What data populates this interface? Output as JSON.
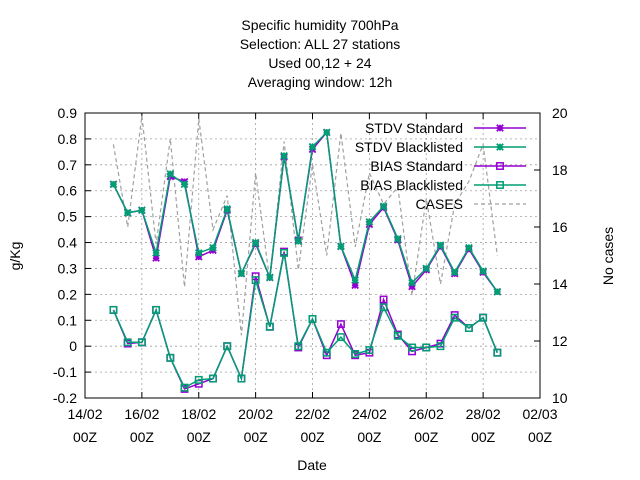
{
  "chart_data": {
    "type": "line",
    "title_lines": [
      "Specific humidity 700hPa",
      "Selection: ALL      27 stations",
      "Used  00,12  + 24",
      "Averaging window: 12h"
    ],
    "xlabel": "Date",
    "ylabel": "g/Kg",
    "y2label": "No cases",
    "ylim": [
      -0.2,
      0.9
    ],
    "y2lim": [
      10,
      20
    ],
    "y_ticks": [
      -0.2,
      -0.1,
      0,
      0.1,
      0.2,
      0.3,
      0.4,
      0.5,
      0.6,
      0.7,
      0.8,
      0.9
    ],
    "y2_ticks": [
      10,
      12,
      14,
      16,
      18,
      20
    ],
    "x_range_days": [
      0,
      16
    ],
    "x_ticks": [
      {
        "day": 0,
        "line1": "14/02",
        "line2": "00Z"
      },
      {
        "day": 2,
        "line1": "16/02",
        "line2": "00Z"
      },
      {
        "day": 4,
        "line1": "18/02",
        "line2": "00Z"
      },
      {
        "day": 6,
        "line1": "20/02",
        "line2": "00Z"
      },
      {
        "day": 8,
        "line1": "22/02",
        "line2": "00Z"
      },
      {
        "day": 10,
        "line1": "24/02",
        "line2": "00Z"
      },
      {
        "day": 12,
        "line1": "26/02",
        "line2": "00Z"
      },
      {
        "day": 14,
        "line1": "28/02",
        "line2": "00Z"
      },
      {
        "day": 16,
        "line1": "02/03",
        "line2": "00Z"
      }
    ],
    "grid": true,
    "legend_position": "top-right",
    "x_days": [
      1.0,
      1.5,
      2.0,
      2.5,
      3.0,
      3.5,
      4.0,
      4.5,
      5.0,
      5.5,
      6.0,
      6.5,
      7.0,
      7.5,
      8.0,
      8.5,
      9.0,
      9.5,
      10.0,
      10.5,
      11.0,
      11.5,
      12.0,
      12.5,
      13.0,
      13.5,
      14.0,
      14.5
    ],
    "series": [
      {
        "name": "STDV Standard",
        "axis": "y",
        "color": "#9400d3",
        "marker": "star",
        "dash": false,
        "values": [
          0.625,
          0.515,
          0.525,
          0.34,
          0.655,
          0.635,
          0.345,
          0.37,
          0.525,
          0.28,
          0.395,
          0.265,
          0.73,
          0.41,
          0.76,
          0.825,
          0.385,
          0.235,
          0.47,
          0.535,
          0.41,
          0.23,
          0.295,
          0.385,
          0.28,
          0.375,
          0.285,
          0.21
        ]
      },
      {
        "name": "STDV Blacklisted",
        "axis": "y",
        "color": "#009e73",
        "marker": "cross",
        "dash": false,
        "values": [
          0.625,
          0.515,
          0.525,
          0.36,
          0.665,
          0.625,
          0.36,
          0.38,
          0.53,
          0.28,
          0.4,
          0.265,
          0.735,
          0.405,
          0.77,
          0.825,
          0.385,
          0.255,
          0.48,
          0.54,
          0.415,
          0.245,
          0.3,
          0.39,
          0.285,
          0.38,
          0.29,
          0.21
        ]
      },
      {
        "name": "BIAS Standard",
        "axis": "y",
        "color": "#9400d3",
        "marker": "square",
        "dash": false,
        "values": [
          0.14,
          0.01,
          0.015,
          0.14,
          -0.045,
          -0.165,
          -0.145,
          -0.125,
          0.0,
          -0.125,
          0.27,
          0.075,
          0.365,
          -0.005,
          0.105,
          -0.035,
          0.085,
          -0.035,
          -0.025,
          0.18,
          0.045,
          -0.02,
          -0.005,
          0.01,
          0.12,
          0.07,
          0.11,
          -0.025
        ]
      },
      {
        "name": "BIAS Blacklisted",
        "axis": "y",
        "color": "#009e73",
        "marker": "square",
        "dash": false,
        "values": [
          0.14,
          0.015,
          0.015,
          0.14,
          -0.045,
          -0.16,
          -0.13,
          -0.125,
          0.0,
          -0.125,
          0.255,
          0.075,
          0.36,
          0.0,
          0.105,
          -0.025,
          0.035,
          -0.03,
          -0.015,
          0.15,
          0.04,
          -0.005,
          -0.005,
          0.0,
          0.11,
          0.07,
          0.11,
          -0.025
        ]
      },
      {
        "name": "CASES",
        "axis": "y2",
        "color": "#a0a0a0",
        "marker": "none",
        "dash": true,
        "values": [
          18.9,
          16.0,
          19.9,
          15.4,
          19.1,
          13.9,
          19.8,
          15.9,
          17.1,
          12.2,
          17.9,
          14.1,
          19.0,
          14.5,
          18.2,
          15.0,
          19.3,
          15.3,
          17.9,
          16.8,
          17.4,
          13.6,
          17.0,
          14.0,
          16.8,
          17.6,
          18.9,
          15.0
        ]
      }
    ]
  }
}
